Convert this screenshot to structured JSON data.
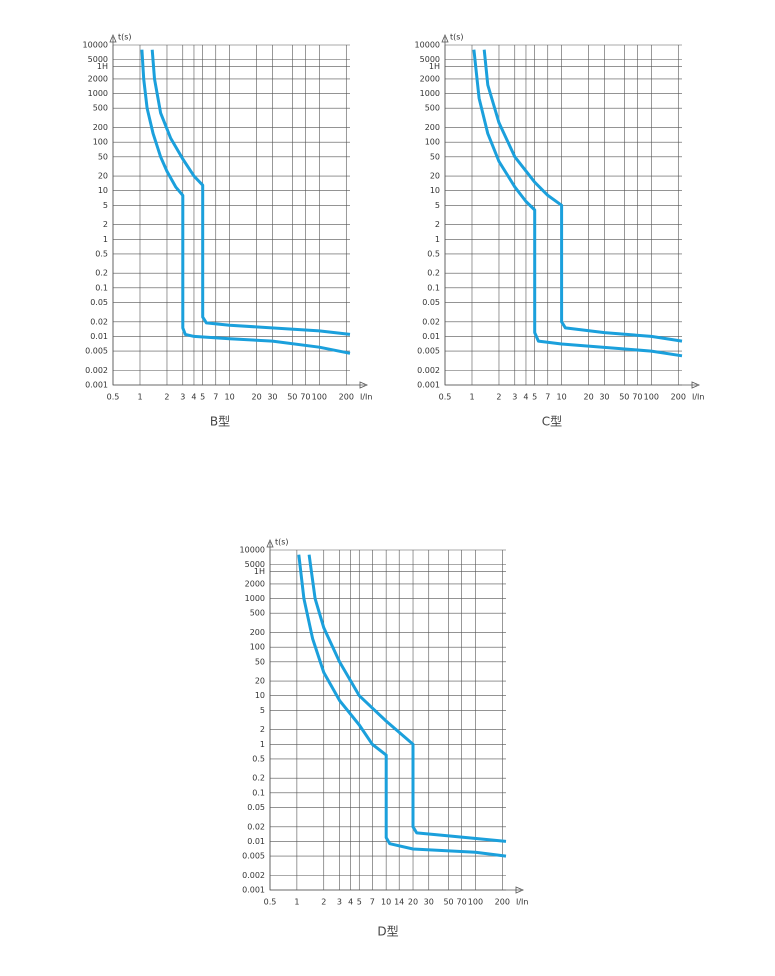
{
  "chart_data": [
    {
      "type": "line",
      "title": "B型",
      "x_label": "I/In",
      "y_label": "t(s)",
      "log_x": true,
      "log_y": true,
      "grid": true,
      "xlim": [
        0.5,
        220
      ],
      "ylim": [
        0.001,
        10000
      ],
      "xticks": [
        0.5,
        1,
        2,
        3,
        4,
        5,
        7,
        10,
        20,
        30,
        50,
        70,
        100,
        200
      ],
      "yticks": [
        0.001,
        0.002,
        0.005,
        0.01,
        0.02,
        0.05,
        0.1,
        0.2,
        0.5,
        1,
        2,
        5,
        10,
        20,
        50,
        100,
        200,
        500,
        1000,
        2000,
        {
          "value": 3600,
          "label": "1H"
        },
        5000,
        10000
      ],
      "series": [
        {
          "color": "#1ba0dc",
          "x": [
            1.05,
            1.1,
            1.2,
            1.4,
            1.7,
            2,
            2.5,
            3,
            3,
            3.2,
            4,
            10,
            30,
            100,
            220
          ],
          "values": [
            8000,
            2000,
            500,
            150,
            50,
            25,
            12,
            8,
            0.015,
            0.011,
            0.01,
            0.009,
            0.008,
            0.006,
            0.0045
          ]
        },
        {
          "color": "#1ba0dc",
          "x": [
            1.37,
            1.45,
            1.7,
            2.2,
            3,
            4,
            5,
            5,
            5.5,
            10,
            100,
            220
          ],
          "values": [
            8000,
            2000,
            400,
            120,
            45,
            20,
            13,
            0.025,
            0.019,
            0.017,
            0.013,
            0.011
          ]
        }
      ]
    },
    {
      "type": "line",
      "title": "C型",
      "x_label": "I/In",
      "y_label": "t(s)",
      "log_x": true,
      "log_y": true,
      "grid": true,
      "xlim": [
        0.5,
        220
      ],
      "ylim": [
        0.001,
        10000
      ],
      "xticks": [
        0.5,
        1,
        2,
        3,
        4,
        5,
        7,
        10,
        20,
        30,
        50,
        70,
        100,
        200
      ],
      "yticks": [
        0.001,
        0.002,
        0.005,
        0.01,
        0.02,
        0.05,
        0.1,
        0.2,
        0.5,
        1,
        2,
        5,
        10,
        20,
        50,
        100,
        200,
        500,
        1000,
        2000,
        {
          "value": 3600,
          "label": "1H"
        },
        5000,
        10000
      ],
      "series": [
        {
          "color": "#1ba0dc",
          "x": [
            1.05,
            1.2,
            1.5,
            2,
            3,
            4,
            5,
            5,
            5.5,
            10,
            100,
            220
          ],
          "values": [
            8000,
            800,
            150,
            40,
            12,
            6,
            4,
            0.012,
            0.008,
            0.007,
            0.005,
            0.004
          ]
        },
        {
          "color": "#1ba0dc",
          "x": [
            1.37,
            1.5,
            2,
            3,
            5,
            7,
            10,
            10,
            11,
            30,
            100,
            220
          ],
          "values": [
            8000,
            1500,
            250,
            50,
            15,
            8,
            5,
            0.02,
            0.015,
            0.012,
            0.01,
            0.008
          ]
        }
      ]
    },
    {
      "type": "line",
      "title": "D型",
      "x_label": "I/In",
      "y_label": "t(s)",
      "log_x": true,
      "log_y": true,
      "grid": true,
      "xlim": [
        0.5,
        220
      ],
      "ylim": [
        0.001,
        10000
      ],
      "xticks": [
        0.5,
        1,
        2,
        3,
        4,
        5,
        7,
        10,
        14,
        20,
        30,
        50,
        70,
        100,
        200
      ],
      "yticks": [
        0.001,
        0.002,
        0.005,
        0.01,
        0.02,
        0.05,
        0.1,
        0.2,
        0.5,
        1,
        2,
        5,
        10,
        20,
        50,
        100,
        200,
        500,
        1000,
        2000,
        {
          "value": 3600,
          "label": "1H"
        },
        5000,
        10000
      ],
      "series": [
        {
          "color": "#1ba0dc",
          "x": [
            1.05,
            1.2,
            1.5,
            2,
            3,
            5,
            7,
            10,
            10,
            11,
            20,
            100,
            220
          ],
          "values": [
            8000,
            1000,
            150,
            30,
            8,
            2.5,
            1,
            0.6,
            0.012,
            0.009,
            0.007,
            0.006,
            0.005
          ]
        },
        {
          "color": "#1ba0dc",
          "x": [
            1.37,
            1.6,
            2,
            3,
            5,
            10,
            20,
            20,
            22,
            50,
            220
          ],
          "values": [
            8000,
            1000,
            250,
            50,
            10,
            3,
            1,
            0.02,
            0.015,
            0.013,
            0.01
          ]
        }
      ]
    }
  ]
}
